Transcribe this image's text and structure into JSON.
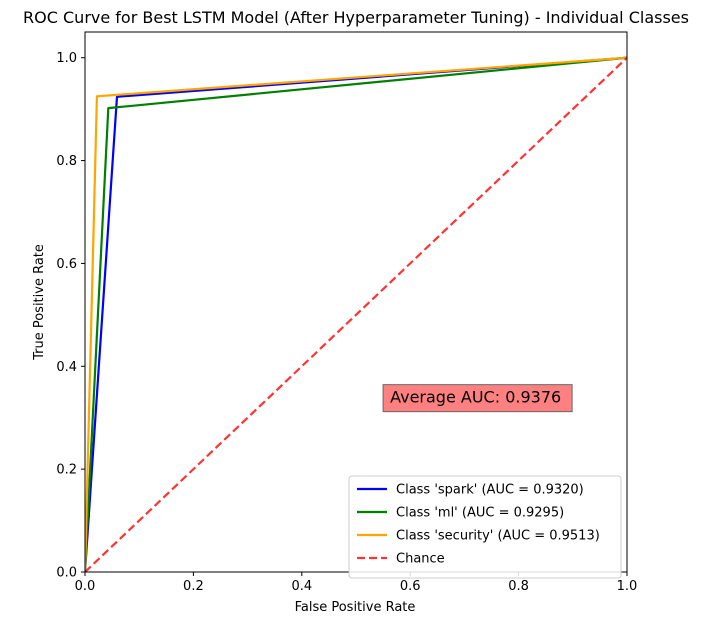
{
  "chart_data": {
    "type": "line",
    "title": "ROC Curve for Best LSTM Model (After Hyperparameter Tuning) - Individual Classes",
    "xlabel": "False Positive Rate",
    "ylabel": "True Positive Rate",
    "xlim": [
      0.0,
      1.0
    ],
    "ylim": [
      0.0,
      1.05
    ],
    "xticks": [
      0.0,
      0.2,
      0.4,
      0.6,
      0.8,
      1.0
    ],
    "yticks": [
      0.0,
      0.2,
      0.4,
      0.6,
      0.8,
      1.0
    ],
    "xtick_labels": [
      "0.0",
      "0.2",
      "0.4",
      "0.6",
      "0.8",
      "1.0"
    ],
    "ytick_labels": [
      "0.0",
      "0.2",
      "0.4",
      "0.6",
      "0.8",
      "1.0"
    ],
    "grid": false,
    "legend_position": "lower-right",
    "series": [
      {
        "name": "Class 'spark' (AUC = 0.9320)",
        "color": "#0000ff",
        "style": "solid",
        "x": [
          0.0,
          0.059,
          1.0
        ],
        "y": [
          0.0,
          0.924,
          1.0
        ]
      },
      {
        "name": "Class 'ml' (AUC = 0.9295)",
        "color": "#008000",
        "style": "solid",
        "x": [
          0.0,
          0.043,
          1.0
        ],
        "y": [
          0.0,
          0.902,
          1.0
        ]
      },
      {
        "name": "Class 'security' (AUC = 0.9513)",
        "color": "#ffa500",
        "style": "solid",
        "x": [
          0.0,
          0.022,
          1.0
        ],
        "y": [
          0.0,
          0.925,
          1.0
        ]
      },
      {
        "name": "Chance",
        "color": "#ff0000",
        "style": "dashed",
        "x": [
          0.0,
          1.0
        ],
        "y": [
          0.0,
          1.0
        ]
      }
    ],
    "annotation": {
      "text": "Average AUC: 0.9376",
      "x": 0.55,
      "y": 0.339,
      "background": "#ff8080"
    }
  }
}
